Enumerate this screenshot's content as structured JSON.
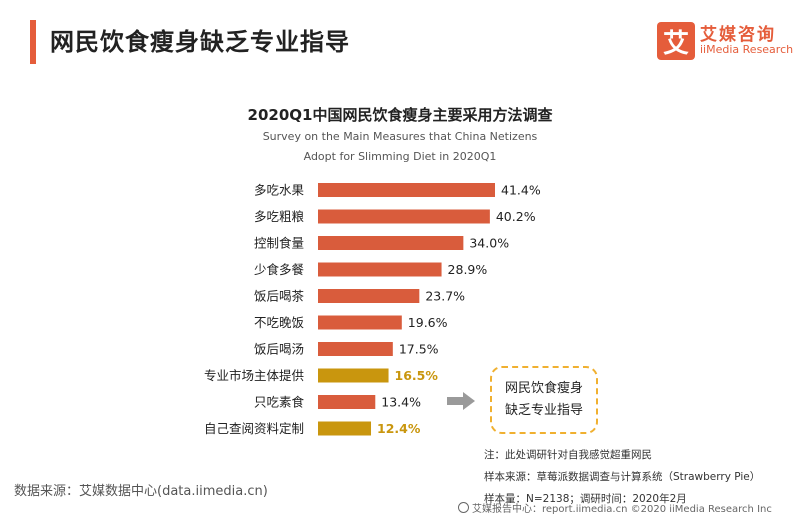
{
  "page": {
    "title": "网民饮食瘦身缺乏专业指导"
  },
  "logo": {
    "mark": "艾",
    "name": "艾媒咨询",
    "sub": "iiMedia Research"
  },
  "chart_data": {
    "type": "bar",
    "orientation": "horizontal",
    "title": "2020Q1中国网民饮食瘦身主要采用方法调查",
    "subtitle_lines": [
      "Survey on the Main Measures that China Netizens",
      "Adopt for Slimming Diet in 2020Q1"
    ],
    "categories": [
      "多吃水果",
      "多吃粗粮",
      "控制食量",
      "少食多餐",
      "饭后喝茶",
      "不吃晚饭",
      "饭后喝汤",
      "专业市场主体提供",
      "只吃素食",
      "自己查阅资料定制"
    ],
    "values": [
      41.4,
      40.2,
      34.0,
      28.9,
      23.7,
      19.6,
      17.5,
      16.5,
      13.4,
      12.4
    ],
    "value_labels": [
      "41.4%",
      "40.2%",
      "34.0%",
      "28.9%",
      "23.7%",
      "19.6%",
      "17.5%",
      "16.5%",
      "13.4%",
      "12.4%"
    ],
    "highlighted": [
      false,
      false,
      false,
      false,
      false,
      false,
      false,
      true,
      false,
      true
    ],
    "colors": {
      "normal": "#d95c3c",
      "highlight": "#c9960e",
      "highlight_label": "#c9960e"
    },
    "xlim": [
      0,
      45
    ]
  },
  "callout": {
    "line1": "网民饮食瘦身",
    "line2": "缺乏专业指导"
  },
  "source": "数据来源：艾媒数据中心(data.iimedia.cn)",
  "notes": {
    "note": "注：此处调研针对自我感觉超重网民",
    "sample_source": "样本来源：草莓派数据调查与计算系统（Strawberry Pie）",
    "sample_size": "样本量：N=2138；调研时间：2020年2月"
  },
  "footer": "艾媒报告中心：report.iimedia.cn  ©2020  iiMedia Research  Inc"
}
